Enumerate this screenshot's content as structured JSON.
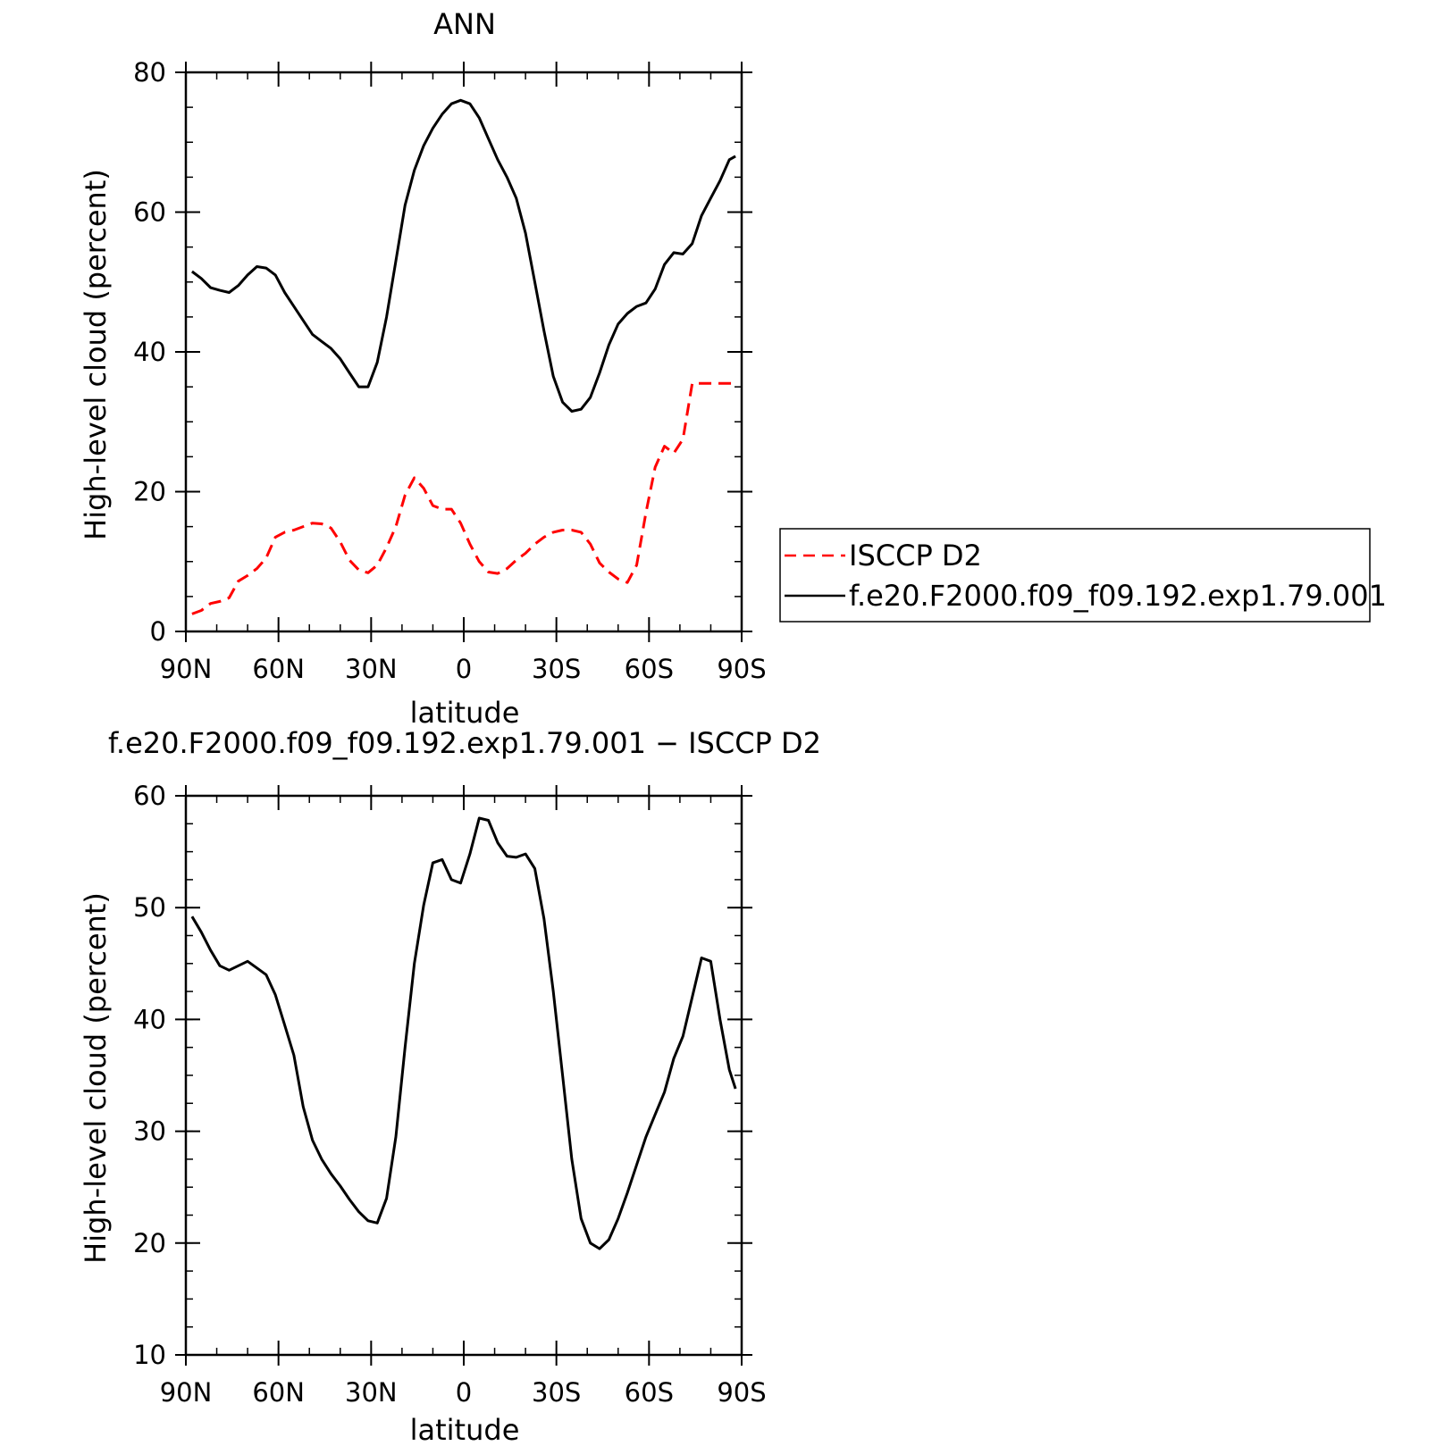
{
  "chart_data": [
    {
      "type": "line",
      "title": "ANN",
      "xlabel": "latitude",
      "ylabel": "High-level cloud (percent)",
      "xlim": [
        90,
        -90
      ],
      "ylim": [
        0,
        80
      ],
      "xticks": [
        90,
        60,
        30,
        0,
        -30,
        -60,
        -90
      ],
      "xtick_labels": [
        "90N",
        "60N",
        "30N",
        "0",
        "30S",
        "60S",
        "90S"
      ],
      "yticks": [
        0,
        20,
        40,
        60,
        80
      ],
      "ytick_labels": [
        "0",
        "20",
        "40",
        "60",
        "80"
      ],
      "legend": "right",
      "series": [
        {
          "name": "ISCCP D2",
          "color": "#ff0000",
          "dash": "dashed",
          "x": [
            88,
            85,
            82,
            79,
            76,
            73,
            70,
            67,
            64,
            61,
            58,
            55,
            52,
            49,
            46,
            43,
            40,
            37,
            34,
            31,
            28,
            25,
            22,
            19,
            16,
            13,
            10,
            7,
            4,
            1,
            -2,
            -5,
            -8,
            -11,
            -14,
            -17,
            -20,
            -23,
            -26,
            -29,
            -32,
            -35,
            -38,
            -41,
            -44,
            -47,
            -50,
            -53,
            -56,
            -59,
            -62,
            -65,
            -68,
            -71,
            -74,
            -77,
            -80,
            -83,
            -86,
            -88
          ],
          "y": [
            2.5,
            3.0,
            4.0,
            4.3,
            4.8,
            7.2,
            8.0,
            9.0,
            10.5,
            13.5,
            14.2,
            14.5,
            15.0,
            15.5,
            15.4,
            14.8,
            12.8,
            10.2,
            8.8,
            8.4,
            9.5,
            12.0,
            15.0,
            19.5,
            22.0,
            20.5,
            18.0,
            17.5,
            17.5,
            15.5,
            12.5,
            10.0,
            8.5,
            8.3,
            9.0,
            10.2,
            11.2,
            12.5,
            13.5,
            14.2,
            14.5,
            14.5,
            14.2,
            12.5,
            9.8,
            8.5,
            7.5,
            7.0,
            9.5,
            17.0,
            23.5,
            26.5,
            25.5,
            27.5,
            35.5,
            35.5,
            35.5,
            35.5,
            35.5,
            35.5
          ]
        },
        {
          "name": "f.e20.F2000.f09_f09.192.exp1.79.001",
          "color": "#000000",
          "dash": "solid",
          "x": [
            88,
            85,
            82,
            79,
            76,
            73,
            70,
            67,
            64,
            61,
            58,
            55,
            52,
            49,
            46,
            43,
            40,
            37,
            34,
            31,
            28,
            25,
            22,
            19,
            16,
            13,
            10,
            7,
            4,
            1,
            -2,
            -5,
            -8,
            -11,
            -14,
            -17,
            -20,
            -23,
            -26,
            -29,
            -32,
            -35,
            -38,
            -41,
            -44,
            -47,
            -50,
            -53,
            -56,
            -59,
            -62,
            -65,
            -68,
            -71,
            -74,
            -77,
            -80,
            -83,
            -86,
            -88
          ],
          "y": [
            51.5,
            50.5,
            49.2,
            48.8,
            48.5,
            49.5,
            51.0,
            52.2,
            52.0,
            51.0,
            48.5,
            46.5,
            44.5,
            42.5,
            41.5,
            40.5,
            39.0,
            37.0,
            35.0,
            35.0,
            38.5,
            45.0,
            53.0,
            61.0,
            66.0,
            69.5,
            72.0,
            74.0,
            75.5,
            76.0,
            75.5,
            73.5,
            70.5,
            67.5,
            65.0,
            62.0,
            57.0,
            50.0,
            43.0,
            36.5,
            32.8,
            31.5,
            31.8,
            33.5,
            37.0,
            41.0,
            44.0,
            45.5,
            46.5,
            47.0,
            49.0,
            52.5,
            54.2,
            54.0,
            55.5,
            59.5,
            62.0,
            64.5,
            67.5,
            68.0
          ]
        }
      ]
    },
    {
      "type": "line",
      "title": "f.e20.F2000.f09_f09.192.exp1.79.001 − ISCCP D2",
      "xlabel": "latitude",
      "ylabel": "High-level cloud (percent)",
      "xlim": [
        90,
        -90
      ],
      "ylim": [
        10,
        60
      ],
      "xticks": [
        90,
        60,
        30,
        0,
        -30,
        -60,
        -90
      ],
      "xtick_labels": [
        "90N",
        "60N",
        "30N",
        "0",
        "30S",
        "60S",
        "90S"
      ],
      "yticks": [
        10,
        20,
        30,
        40,
        50,
        60
      ],
      "ytick_labels": [
        "10",
        "20",
        "30",
        "40",
        "50",
        "60"
      ],
      "series": [
        {
          "color": "#000000",
          "dash": "solid",
          "x": [
            88,
            85,
            82,
            79,
            76,
            73,
            70,
            67,
            64,
            61,
            58,
            55,
            52,
            49,
            46,
            43,
            40,
            37,
            34,
            31,
            28,
            25,
            22,
            19,
            16,
            13,
            10,
            7,
            4,
            1,
            -2,
            -5,
            -8,
            -11,
            -14,
            -17,
            -20,
            -23,
            -26,
            -29,
            -32,
            -35,
            -38,
            -41,
            -44,
            -47,
            -50,
            -53,
            -56,
            -59,
            -62,
            -65,
            -68,
            -71,
            -74,
            -77,
            -80,
            -83,
            -86,
            -88
          ],
          "y": [
            49.2,
            47.8,
            46.2,
            44.8,
            44.4,
            44.8,
            45.2,
            44.6,
            44.0,
            42.2,
            39.5,
            36.8,
            32.2,
            29.2,
            27.5,
            26.2,
            25.1,
            23.9,
            22.8,
            22.0,
            21.8,
            24.0,
            29.5,
            37.5,
            45.0,
            50.2,
            54.0,
            54.3,
            52.5,
            52.2,
            54.8,
            58.0,
            57.8,
            55.8,
            54.6,
            54.5,
            54.8,
            53.5,
            49.0,
            42.5,
            35.0,
            27.5,
            22.2,
            20.0,
            19.5,
            20.3,
            22.2,
            24.5,
            27.0,
            29.5,
            31.5,
            33.5,
            36.5,
            38.5,
            42.0,
            45.5,
            45.2,
            40.0,
            35.5,
            33.8
          ]
        }
      ]
    }
  ]
}
